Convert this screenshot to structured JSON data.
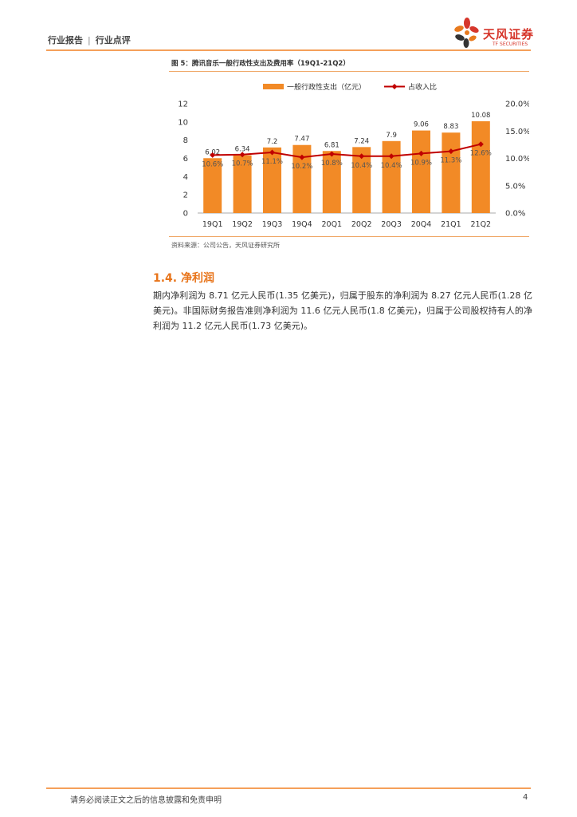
{
  "header": {
    "category": "行业报告",
    "subcategory": "行业点评"
  },
  "logo": {
    "name_cn": "天风证券",
    "name_en": "TF SECURITIES"
  },
  "figure": {
    "title": "图 5：腾讯音乐一般行政性支出及费用率（19Q1-21Q2）",
    "source": "资料来源：公司公告，天风证券研究所"
  },
  "colors": {
    "bar": "#f28a26",
    "line": "#c00000",
    "accent": "#e8741a",
    "rule": "#f5a05a"
  },
  "chart_data": {
    "type": "bar",
    "categories": [
      "19Q1",
      "19Q2",
      "19Q3",
      "19Q4",
      "20Q1",
      "20Q2",
      "20Q3",
      "20Q4",
      "21Q1",
      "21Q2"
    ],
    "series": [
      {
        "name": "一般行政性支出（亿元）",
        "type": "bar",
        "axis": "left",
        "values": [
          6.02,
          6.34,
          7.2,
          7.47,
          6.81,
          7.24,
          7.9,
          9.06,
          8.83,
          10.08
        ],
        "labels": [
          "6.02",
          "6.34",
          "7.2",
          "7.47",
          "6.81",
          "7.24",
          "7.9",
          "9.06",
          "8.83",
          "10.08"
        ]
      },
      {
        "name": "占收入比",
        "type": "line",
        "axis": "right",
        "values": [
          10.6,
          10.7,
          11.1,
          10.2,
          10.8,
          10.4,
          10.4,
          10.9,
          11.3,
          12.6
        ],
        "labels": [
          "10.6%",
          "10.7%",
          "11.1%",
          "10.2%",
          "10.8%",
          "10.4%",
          "10.4%",
          "10.9%",
          "11.3%",
          "12.6%"
        ]
      }
    ],
    "y_left": {
      "min": 0,
      "max": 12,
      "ticks": [
        "0",
        "2",
        "4",
        "6",
        "8",
        "10",
        "12"
      ]
    },
    "y_right": {
      "min": 0,
      "max": 20,
      "ticks": [
        "0.0%",
        "5.0%",
        "10.0%",
        "15.0%",
        "20.0%"
      ]
    },
    "legend_position": "top",
    "grid": false
  },
  "section": {
    "title": "1.4. 净利润",
    "paragraph": "期内净利润为 8.71 亿元人民币(1.35 亿美元)，归属于股东的净利润为 8.27 亿元人民币(1.28 亿美元)。非国际财务报告准则净利润为 11.6 亿元人民币(1.8 亿美元)，归属于公司股权持有人的净利润为 11.2 亿元人民币(1.73 亿美元)。"
  },
  "footer": {
    "disclaimer": "请务必阅读正文之后的信息披露和免责申明",
    "page": "4"
  }
}
